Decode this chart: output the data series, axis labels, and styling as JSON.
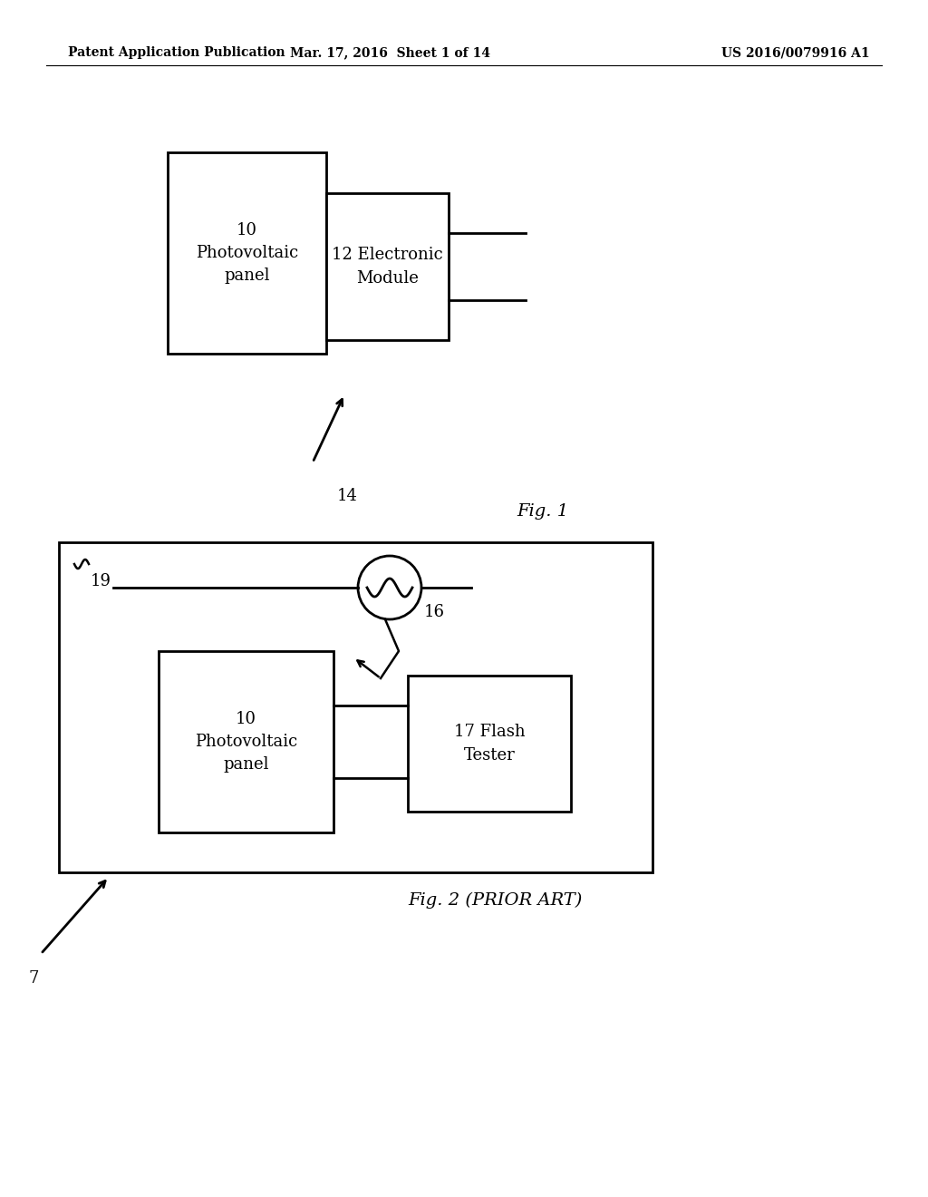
{
  "header_left": "Patent Application Publication",
  "header_mid": "Mar. 17, 2016  Sheet 1 of 14",
  "header_right": "US 2016/0079916 A1",
  "fig1_label": "Fig. 1",
  "fig2_label": "Fig. 2 (PRIOR ART)",
  "fig1_pv_text": "10\nPhotovoltaic\npanel",
  "fig1_em_text": "12 Electronic\nModule",
  "fig1_arrow_label": "14",
  "fig2_pv_text": "10\nPhotovoltaic\npanel",
  "fig2_ft_text": "17 Flash\nTester",
  "fig2_lamp_label": "16",
  "fig2_wavy_label": "19",
  "fig2_arrow_label": "7",
  "background_color": "#ffffff",
  "line_color": "#000000",
  "text_color": "#000000"
}
